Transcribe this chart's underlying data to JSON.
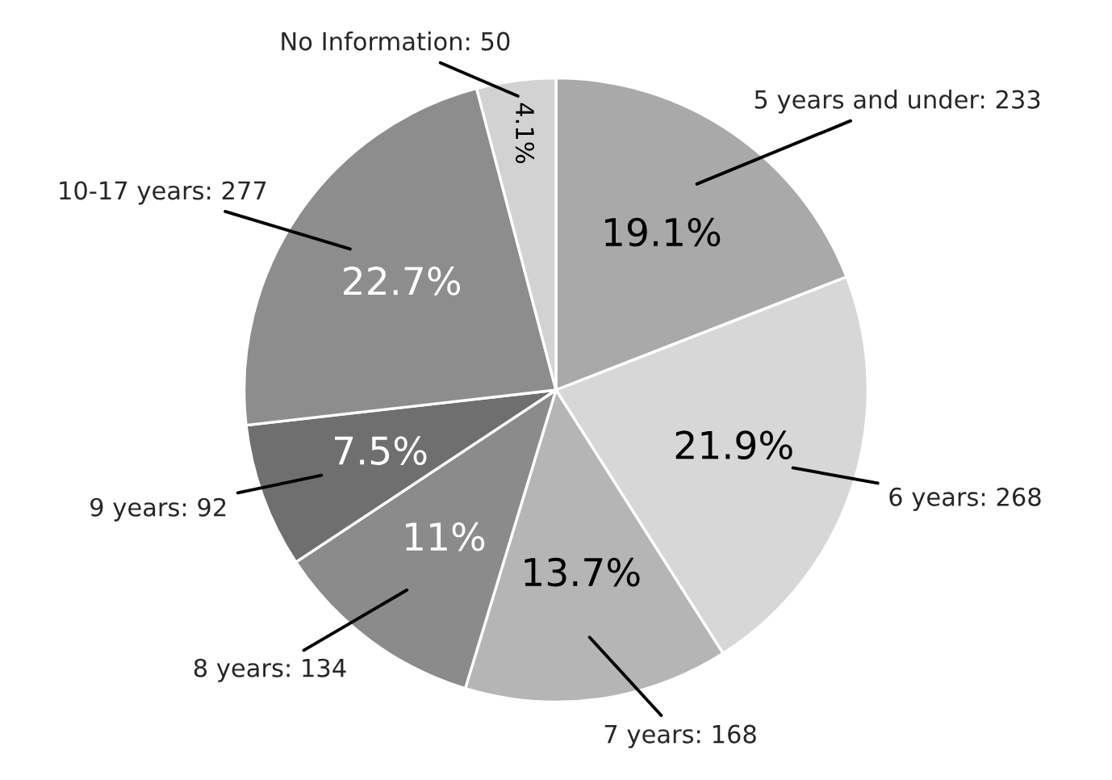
{
  "chart_data": {
    "type": "pie",
    "categories": [
      "5 years and under: 233",
      "6 years: 268",
      "7 years: 168",
      "8 years: 134",
      "9 years: 92",
      "10-17 years: 277",
      "No Information: 50"
    ],
    "values": [
      19.1,
      21.9,
      13.7,
      11,
      7.5,
      22.7,
      4.1
    ],
    "value_labels": [
      "19.1%",
      "21.9%",
      "13.7%",
      "11%",
      "7.5%",
      "22.7%",
      "4.1%"
    ],
    "colors": [
      "#a9a9a9",
      "#d7d7d7",
      "#b5b5b5",
      "#8b8b8b",
      "#6f6f6f",
      "#8d8d8d",
      "#d2d2d2"
    ]
  }
}
